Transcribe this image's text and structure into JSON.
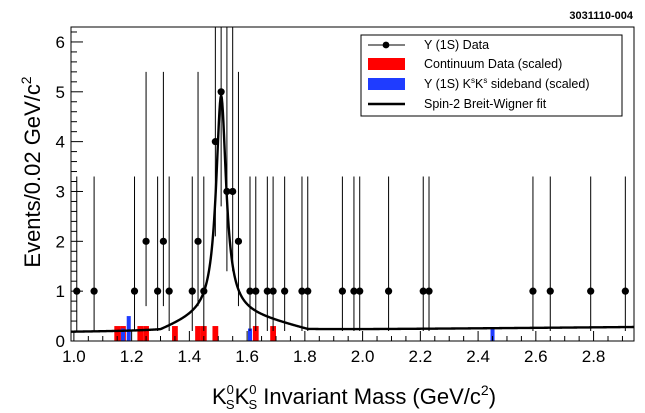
{
  "chart_data": {
    "type": "bar",
    "id_label": "3031110-004",
    "xlabel_parts": {
      "k1": "K",
      "sup1": "0",
      "sub1": "S",
      "k2": "K",
      "sup2": "0",
      "sub2": "S",
      "rest": " Invariant Mass (GeV/c",
      "sup3": "2",
      "end": ")"
    },
    "ylabel_parts": {
      "main": "Events/0.02 GeV/c",
      "sup": "2"
    },
    "xlim": [
      0.99,
      2.94
    ],
    "ylim": [
      0,
      6.3
    ],
    "x_ticks": [
      1.0,
      1.2,
      1.4,
      1.6,
      1.8,
      2.0,
      2.2,
      2.4,
      2.6,
      2.8
    ],
    "x_tick_labels": [
      "1.0",
      "1.2",
      "1.4",
      "1.6",
      "1.8",
      "2.0",
      "2.2",
      "2.4",
      "2.6",
      "2.8"
    ],
    "y_ticks": [
      0,
      1,
      2,
      3,
      4,
      5,
      6
    ],
    "y_tick_labels": [
      "0",
      "1",
      "2",
      "3",
      "4",
      "5",
      "6"
    ],
    "legend": {
      "position": "top-right",
      "entries": [
        {
          "key": "data",
          "label": "Υ (1S) Data"
        },
        {
          "key": "continuum",
          "label": "Continuum Data (scaled)"
        },
        {
          "key": "sideband",
          "label_main": "Υ (1S) K",
          "label_sup1": "s",
          "label_mid": "K",
          "label_sup2": "s",
          "label_end": " sideband (scaled)"
        },
        {
          "key": "fit",
          "label": "Spin-2 Breit-Wigner fit"
        }
      ]
    },
    "colors": {
      "data": "#000000",
      "continuum": "#ff0000",
      "sideband": "#1f3cff",
      "fit": "#000000"
    },
    "series": [
      {
        "name": "Υ (1S) Data",
        "kind": "points",
        "points": [
          {
            "x": 1.01,
            "y": 1
          },
          {
            "x": 1.07,
            "y": 1
          },
          {
            "x": 1.21,
            "y": 1
          },
          {
            "x": 1.25,
            "y": 2
          },
          {
            "x": 1.29,
            "y": 1
          },
          {
            "x": 1.31,
            "y": 2
          },
          {
            "x": 1.33,
            "y": 1
          },
          {
            "x": 1.41,
            "y": 1
          },
          {
            "x": 1.43,
            "y": 2
          },
          {
            "x": 1.45,
            "y": 1
          },
          {
            "x": 1.49,
            "y": 4
          },
          {
            "x": 1.51,
            "y": 5
          },
          {
            "x": 1.53,
            "y": 3
          },
          {
            "x": 1.55,
            "y": 3
          },
          {
            "x": 1.57,
            "y": 2
          },
          {
            "x": 1.61,
            "y": 1
          },
          {
            "x": 1.63,
            "y": 1
          },
          {
            "x": 1.67,
            "y": 1
          },
          {
            "x": 1.69,
            "y": 1
          },
          {
            "x": 1.73,
            "y": 1
          },
          {
            "x": 1.79,
            "y": 1
          },
          {
            "x": 1.81,
            "y": 1
          },
          {
            "x": 1.93,
            "y": 1
          },
          {
            "x": 1.97,
            "y": 1
          },
          {
            "x": 1.99,
            "y": 1
          },
          {
            "x": 2.09,
            "y": 1
          },
          {
            "x": 2.21,
            "y": 1
          },
          {
            "x": 2.23,
            "y": 1
          },
          {
            "x": 2.59,
            "y": 1
          },
          {
            "x": 2.65,
            "y": 1
          },
          {
            "x": 2.79,
            "y": 1
          },
          {
            "x": 2.91,
            "y": 1
          }
        ]
      },
      {
        "name": "Continuum Data (scaled)",
        "kind": "bars",
        "bin_width": 0.02,
        "bars": [
          {
            "x": 1.15,
            "y": 0.3
          },
          {
            "x": 1.17,
            "y": 0.3
          },
          {
            "x": 1.23,
            "y": 0.3
          },
          {
            "x": 1.25,
            "y": 0.3
          },
          {
            "x": 1.35,
            "y": 0.3
          },
          {
            "x": 1.43,
            "y": 0.3
          },
          {
            "x": 1.45,
            "y": 0.3
          },
          {
            "x": 1.49,
            "y": 0.3
          },
          {
            "x": 1.63,
            "y": 0.3
          },
          {
            "x": 1.69,
            "y": 0.3
          }
        ]
      },
      {
        "name": "Υ (1S) KsKs sideband (scaled)",
        "kind": "bars",
        "bin_width": 0.02,
        "bars": [
          {
            "x": 1.17,
            "y": 0.25
          },
          {
            "x": 1.19,
            "y": 0.5
          },
          {
            "x": 1.61,
            "y": 0.25
          },
          {
            "x": 2.45,
            "y": 0.25
          }
        ]
      },
      {
        "name": "Spin-2 Breit-Wigner fit",
        "kind": "curve",
        "peak_mass": 1.51,
        "peak_height": 4.9,
        "width": 0.042,
        "background_start": 0.18,
        "background_end": 0.28,
        "background_peak": 0.62
      }
    ]
  }
}
